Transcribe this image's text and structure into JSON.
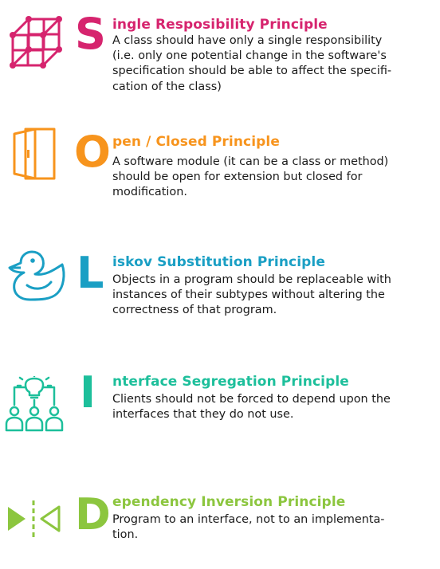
{
  "principles": [
    {
      "letter": "S",
      "title_rest": "ingle Resposibility Principle",
      "color": "#d6246e",
      "icon": "cube-network-icon",
      "lines": [
        "A class should have only a single responsibility",
        "(i.e. only one potential change in the software's",
        "specification should be able to affect the specifi-",
        "cation of the class)"
      ]
    },
    {
      "letter": "O",
      "title_rest": "pen / Closed Principle",
      "color": "#f7941d",
      "icon": "open-door-icon",
      "lines": [
        "A software module (it can be a class or method)",
        "should be open for extension but closed for",
        "modification."
      ]
    },
    {
      "letter": "L",
      "title_rest": "iskov Substitution Principle",
      "color": "#1a9fc4",
      "icon": "rubber-duck-icon",
      "lines": [
        "Objects in a program should be replaceable with",
        "instances of their subtypes without altering the",
        "correctness of that program."
      ]
    },
    {
      "letter": "I",
      "title_rest": "nterface Segregation Principle",
      "color": "#1dbf9b",
      "icon": "idea-team-icon",
      "lines": [
        "Clients should not be forced to depend upon the",
        "interfaces that they do not use."
      ]
    },
    {
      "letter": "D",
      "title_rest": "ependency Inversion Principle",
      "color": "#8cc63f",
      "icon": "converging-arrows-icon",
      "lines": [
        "Program to an interface, not to an implementa-",
        "tion."
      ]
    }
  ]
}
